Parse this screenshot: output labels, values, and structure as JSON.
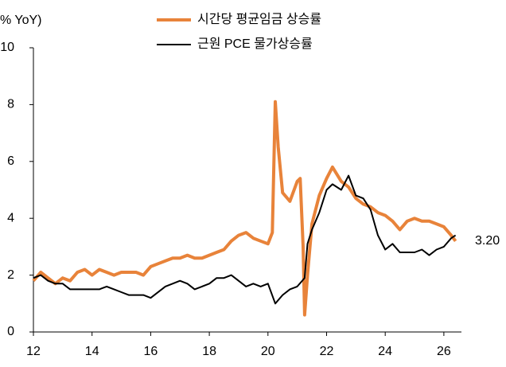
{
  "chart_data": {
    "type": "line",
    "y_label": "% YoY)",
    "xlim": [
      12,
      26.6
    ],
    "ylim": [
      0,
      10
    ],
    "xticks": [
      12,
      14,
      16,
      18,
      20,
      22,
      24,
      26
    ],
    "yticks": [
      0,
      2,
      4,
      6,
      8,
      10
    ],
    "legend": "top",
    "grid": false,
    "annotation": "3.20",
    "series": [
      {
        "name": "시간당 평균임금 상승률",
        "color": "#e8833a",
        "width": 4,
        "x": [
          12.0,
          12.25,
          12.5,
          12.75,
          13.0,
          13.25,
          13.5,
          13.75,
          14.0,
          14.25,
          14.5,
          14.75,
          15.0,
          15.25,
          15.5,
          15.75,
          16.0,
          16.25,
          16.5,
          16.75,
          17.0,
          17.25,
          17.5,
          17.75,
          18.0,
          18.25,
          18.5,
          18.75,
          19.0,
          19.25,
          19.5,
          19.75,
          20.0,
          20.15,
          20.25,
          20.35,
          20.5,
          20.75,
          21.0,
          21.1,
          21.2,
          21.25,
          21.35,
          21.5,
          21.75,
          22.0,
          22.2,
          22.5,
          22.75,
          23.0,
          23.25,
          23.5,
          23.75,
          24.0,
          24.25,
          24.5,
          24.75,
          25.0,
          25.25,
          25.5,
          25.75,
          26.0,
          26.25,
          26.4
        ],
        "values": [
          1.8,
          2.1,
          1.9,
          1.7,
          1.9,
          1.8,
          2.1,
          2.2,
          2.0,
          2.2,
          2.1,
          2.0,
          2.1,
          2.1,
          2.1,
          2.0,
          2.3,
          2.4,
          2.5,
          2.6,
          2.6,
          2.7,
          2.6,
          2.6,
          2.7,
          2.8,
          2.9,
          3.2,
          3.4,
          3.5,
          3.3,
          3.2,
          3.1,
          3.5,
          8.1,
          6.5,
          4.9,
          4.6,
          5.3,
          5.4,
          3.0,
          0.6,
          2.0,
          3.8,
          4.8,
          5.4,
          5.8,
          5.3,
          5.1,
          4.7,
          4.5,
          4.4,
          4.2,
          4.1,
          3.9,
          3.6,
          3.9,
          4.0,
          3.9,
          3.9,
          3.8,
          3.7,
          3.4,
          3.2
        ]
      },
      {
        "name": "근원 PCE 물가상승률",
        "color": "#000000",
        "width": 2,
        "x": [
          12.0,
          12.25,
          12.5,
          12.75,
          13.0,
          13.25,
          13.5,
          13.75,
          14.0,
          14.25,
          14.5,
          14.75,
          15.0,
          15.25,
          15.5,
          15.75,
          16.0,
          16.5,
          16.75,
          17.0,
          17.25,
          17.5,
          17.75,
          18.0,
          18.25,
          18.5,
          18.75,
          19.0,
          19.25,
          19.5,
          19.75,
          20.0,
          20.25,
          20.5,
          20.75,
          21.0,
          21.25,
          21.35,
          21.5,
          21.75,
          22.0,
          22.2,
          22.5,
          22.75,
          23.0,
          23.25,
          23.5,
          23.75,
          24.0,
          24.25,
          24.5,
          24.75,
          25.0,
          25.25,
          25.5,
          25.75,
          26.0,
          26.25,
          26.4
        ],
        "values": [
          1.9,
          2.0,
          1.8,
          1.7,
          1.7,
          1.5,
          1.5,
          1.5,
          1.5,
          1.5,
          1.6,
          1.5,
          1.4,
          1.3,
          1.3,
          1.3,
          1.2,
          1.6,
          1.7,
          1.8,
          1.7,
          1.5,
          1.6,
          1.7,
          1.9,
          1.9,
          2.0,
          1.8,
          1.6,
          1.7,
          1.6,
          1.7,
          1.0,
          1.3,
          1.5,
          1.6,
          1.9,
          3.1,
          3.6,
          4.2,
          5.0,
          5.2,
          5.0,
          5.5,
          4.8,
          4.7,
          4.3,
          3.4,
          2.9,
          3.1,
          2.8,
          2.8,
          2.8,
          2.9,
          2.7,
          2.9,
          3.0,
          3.3,
          3.4
        ]
      }
    ]
  }
}
